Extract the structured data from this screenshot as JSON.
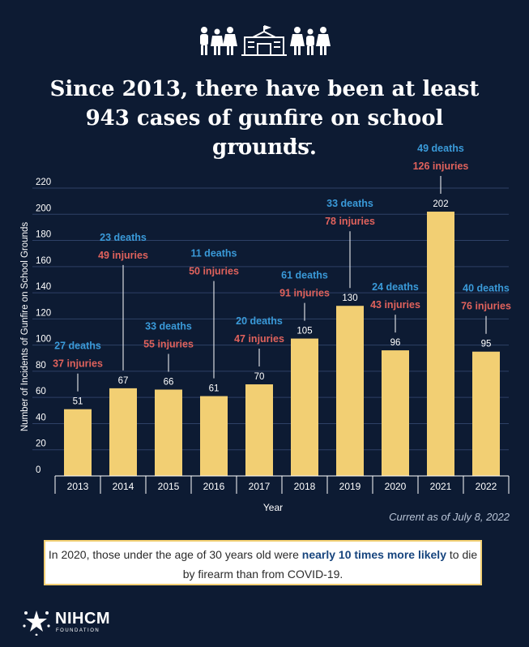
{
  "header": {
    "title": "Since 2013, there have been at least 943 cases of gunfire on school grounds."
  },
  "chart_data": {
    "type": "bar",
    "ylabel": "Number of Incidents of Gunfire on School Grounds",
    "xlabel": "Year",
    "ylim": [
      0,
      220
    ],
    "yticks": [
      0,
      20,
      40,
      60,
      80,
      100,
      120,
      140,
      160,
      180,
      200,
      220
    ],
    "grid": true,
    "categories": [
      "2013",
      "2014",
      "2015",
      "2016",
      "2017",
      "2018",
      "2019",
      "2020",
      "2021",
      "2022"
    ],
    "values": [
      51,
      67,
      66,
      61,
      70,
      105,
      130,
      96,
      202,
      95
    ],
    "annotations": [
      {
        "deaths": "27 deaths",
        "injuries": "37 injuries"
      },
      {
        "deaths": "23 deaths",
        "injuries": "49 injuries"
      },
      {
        "deaths": "33 deaths",
        "injuries": "55 injuries"
      },
      {
        "deaths": "11 deaths",
        "injuries": "50 injuries"
      },
      {
        "deaths": "20 deaths",
        "injuries": "47 injuries"
      },
      {
        "deaths": "61 deaths",
        "injuries": "91 injuries"
      },
      {
        "deaths": "33 deaths",
        "injuries": "78 injuries"
      },
      {
        "deaths": "24 deaths",
        "injuries": "43 injuries"
      },
      {
        "deaths": "49 deaths",
        "injuries": "126 injuries"
      },
      {
        "deaths": "40  deaths",
        "injuries": "76 injuries"
      }
    ]
  },
  "note": "Current as of July 8, 2022",
  "callout": {
    "part1": "In 2020, those under the age of 30 years old were ",
    "highlight": "nearly 10 times more likely",
    "part2": " to die by firearm than from COVID-19."
  },
  "logo": {
    "name": "NIHCM",
    "sub": "FOUNDATION"
  },
  "colors": {
    "background": "#0d1b33",
    "bar": "#f2cf73",
    "deaths": "#3a9ad9",
    "injuries": "#e0625c",
    "grid": "#2e4166",
    "callout_highlight": "#17457e"
  },
  "icons": [
    "people-group-icon",
    "school-building-icon",
    "people-group-icon"
  ]
}
